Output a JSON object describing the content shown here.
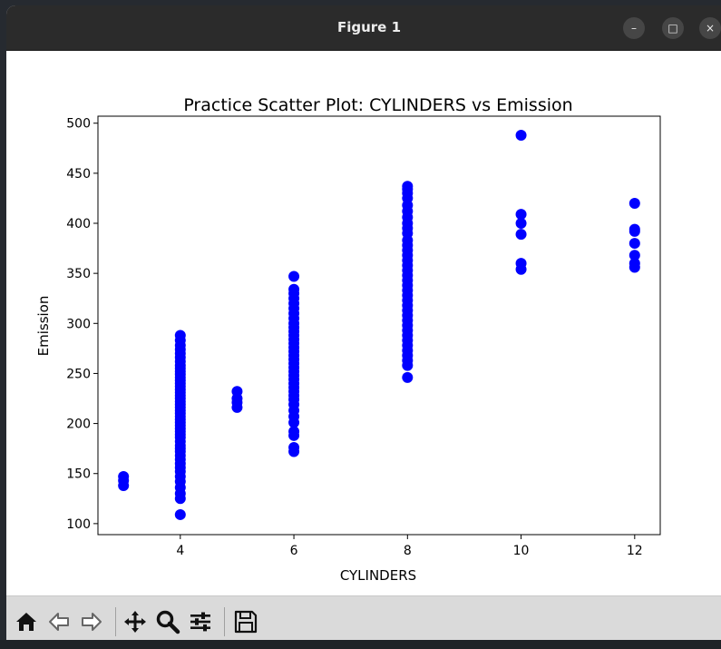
{
  "window": {
    "title": "Figure 1"
  },
  "window_controls": {
    "minimize": "–",
    "maximize": "□",
    "close": "×"
  },
  "toolbar": {
    "items": [
      "home-icon",
      "back-icon",
      "forward-icon",
      "pan-icon",
      "zoom-icon",
      "configure-subplots-icon",
      "save-icon"
    ]
  },
  "colors": {
    "points": "#0000ff",
    "titlebar": "#2b2b2b",
    "toolbar": "#dadada"
  },
  "chart_data": {
    "type": "scatter",
    "title": "Practice Scatter Plot: CYLINDERS vs Emission",
    "xlabel": "CYLINDERS",
    "ylabel": "Emission",
    "xlim": [
      2.55,
      12.45
    ],
    "ylim": [
      89,
      507
    ],
    "xticks": [
      4,
      6,
      8,
      10,
      12
    ],
    "yticks": [
      100,
      150,
      200,
      250,
      300,
      350,
      400,
      450,
      500
    ],
    "grid": false,
    "legend": "none",
    "series": [
      {
        "color": "#0000ff",
        "points": [
          [
            3,
            138
          ],
          [
            3,
            143
          ],
          [
            3,
            147
          ],
          [
            4,
            109
          ],
          [
            4,
            125
          ],
          [
            4,
            130
          ],
          [
            4,
            136
          ],
          [
            4,
            142
          ],
          [
            4,
            147
          ],
          [
            4,
            152
          ],
          [
            4,
            156
          ],
          [
            4,
            160
          ],
          [
            4,
            164
          ],
          [
            4,
            168
          ],
          [
            4,
            172
          ],
          [
            4,
            175
          ],
          [
            4,
            178
          ],
          [
            4,
            182
          ],
          [
            4,
            186
          ],
          [
            4,
            189
          ],
          [
            4,
            192
          ],
          [
            4,
            195
          ],
          [
            4,
            198
          ],
          [
            4,
            201
          ],
          [
            4,
            204
          ],
          [
            4,
            207
          ],
          [
            4,
            210
          ],
          [
            4,
            213
          ],
          [
            4,
            216
          ],
          [
            4,
            219
          ],
          [
            4,
            222
          ],
          [
            4,
            225
          ],
          [
            4,
            228
          ],
          [
            4,
            231
          ],
          [
            4,
            234
          ],
          [
            4,
            237
          ],
          [
            4,
            240
          ],
          [
            4,
            243
          ],
          [
            4,
            246
          ],
          [
            4,
            249
          ],
          [
            4,
            252
          ],
          [
            4,
            255
          ],
          [
            4,
            258
          ],
          [
            4,
            262
          ],
          [
            4,
            266
          ],
          [
            4,
            270
          ],
          [
            4,
            274
          ],
          [
            4,
            278
          ],
          [
            4,
            283
          ],
          [
            4,
            288
          ],
          [
            5,
            216
          ],
          [
            5,
            221
          ],
          [
            5,
            225
          ],
          [
            5,
            232
          ],
          [
            6,
            172
          ],
          [
            6,
            176
          ],
          [
            6,
            188
          ],
          [
            6,
            192
          ],
          [
            6,
            201
          ],
          [
            6,
            207
          ],
          [
            6,
            213
          ],
          [
            6,
            219
          ],
          [
            6,
            224
          ],
          [
            6,
            228
          ],
          [
            6,
            232
          ],
          [
            6,
            236
          ],
          [
            6,
            240
          ],
          [
            6,
            244
          ],
          [
            6,
            248
          ],
          [
            6,
            252
          ],
          [
            6,
            256
          ],
          [
            6,
            260
          ],
          [
            6,
            264
          ],
          [
            6,
            268
          ],
          [
            6,
            272
          ],
          [
            6,
            276
          ],
          [
            6,
            280
          ],
          [
            6,
            284
          ],
          [
            6,
            288
          ],
          [
            6,
            292
          ],
          [
            6,
            296
          ],
          [
            6,
            300
          ],
          [
            6,
            305
          ],
          [
            6,
            310
          ],
          [
            6,
            315
          ],
          [
            6,
            320
          ],
          [
            6,
            325
          ],
          [
            6,
            330
          ],
          [
            6,
            334
          ],
          [
            6,
            347
          ],
          [
            8,
            246
          ],
          [
            8,
            258
          ],
          [
            8,
            263
          ],
          [
            8,
            268
          ],
          [
            8,
            273
          ],
          [
            8,
            278
          ],
          [
            8,
            283
          ],
          [
            8,
            288
          ],
          [
            8,
            293
          ],
          [
            8,
            298
          ],
          [
            8,
            303
          ],
          [
            8,
            308
          ],
          [
            8,
            313
          ],
          [
            8,
            318
          ],
          [
            8,
            323
          ],
          [
            8,
            328
          ],
          [
            8,
            333
          ],
          [
            8,
            338
          ],
          [
            8,
            343
          ],
          [
            8,
            348
          ],
          [
            8,
            353
          ],
          [
            8,
            358
          ],
          [
            8,
            363
          ],
          [
            8,
            368
          ],
          [
            8,
            373
          ],
          [
            8,
            378
          ],
          [
            8,
            383
          ],
          [
            8,
            390
          ],
          [
            8,
            395
          ],
          [
            8,
            400
          ],
          [
            8,
            406
          ],
          [
            8,
            412
          ],
          [
            8,
            418
          ],
          [
            8,
            425
          ],
          [
            8,
            430
          ],
          [
            8,
            434
          ],
          [
            8,
            437
          ],
          [
            10,
            354
          ],
          [
            10,
            360
          ],
          [
            10,
            389
          ],
          [
            10,
            400
          ],
          [
            10,
            409
          ],
          [
            10,
            488
          ],
          [
            12,
            356
          ],
          [
            12,
            360
          ],
          [
            12,
            368
          ],
          [
            12,
            380
          ],
          [
            12,
            392
          ],
          [
            12,
            394
          ],
          [
            12,
            420
          ]
        ]
      }
    ]
  }
}
